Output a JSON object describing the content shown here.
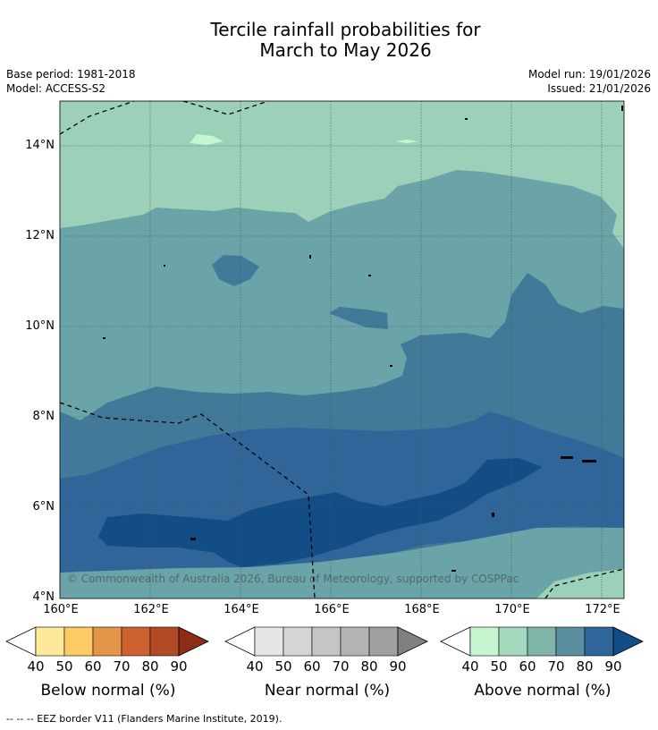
{
  "title": {
    "line1": "Tercile rainfall probabilities for",
    "line2": "March to May 2026"
  },
  "meta": {
    "base_period": "Base period: 1981-2018",
    "model": "Model: ACCESS-S2",
    "model_run": "Model run: 19/01/2026",
    "issued": "Issued: 21/01/2026"
  },
  "map": {
    "lat_labels": [
      "14°N",
      "12°N",
      "10°N",
      "8°N",
      "6°N",
      "4°N"
    ],
    "lon_labels": [
      "160°E",
      "162°E",
      "164°E",
      "166°E",
      "168°E",
      "170°E",
      "172°E"
    ],
    "lat_range": [
      4,
      15
    ],
    "lon_range": [
      160,
      172.5
    ],
    "copyright": "© Commonwealth of Australia 2026, Bureau of Meteorology, supported by COSPPac",
    "shading_colors": [
      "#9cd0b9",
      "#6aa4a8",
      "#407a98",
      "#30659a",
      "#134d86"
    ]
  },
  "colorbars": [
    {
      "label": "Below normal (%)",
      "ticks": [
        "40",
        "50",
        "60",
        "70",
        "80",
        "90"
      ],
      "colors": [
        "#ffffff",
        "#fee89a",
        "#fdcb63",
        "#e3954a",
        "#cd6132",
        "#b34a26",
        "#8c2d16"
      ]
    },
    {
      "label": "Near normal (%)",
      "ticks": [
        "40",
        "50",
        "60",
        "70",
        "80",
        "90"
      ],
      "colors": [
        "#ffffff",
        "#e6e6e6",
        "#d5d5d5",
        "#c5c5c5",
        "#b3b3b3",
        "#9f9f9f",
        "#808080"
      ]
    },
    {
      "label": "Above normal (%)",
      "ticks": [
        "40",
        "50",
        "60",
        "70",
        "80",
        "90"
      ],
      "colors": [
        "#ffffff",
        "#c6f6d0",
        "#a4d9bd",
        "#7fb4a8",
        "#5a8fa0",
        "#30659a",
        "#134d86"
      ]
    }
  ],
  "footer": "--  --  -- EEZ border V11 (Flanders Marine Institute, 2019)."
}
